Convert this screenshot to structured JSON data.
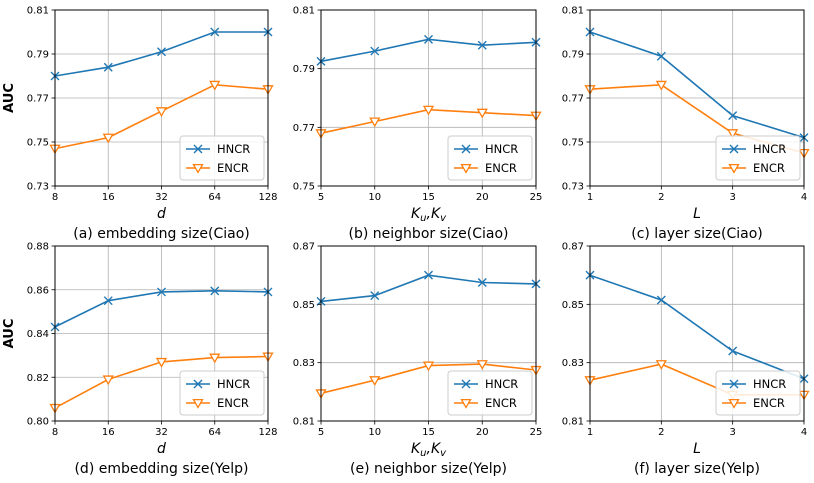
{
  "chart_data": [
    {
      "type": "line",
      "title": "(a) embedding size(Ciao)",
      "xlabel": "d",
      "ylabel": "AUC",
      "categories": [
        "8",
        "16",
        "32",
        "64",
        "128"
      ],
      "yticks": [
        "0.73",
        "0.75",
        "0.77",
        "0.79",
        "0.81"
      ],
      "ylim": [
        0.73,
        0.81
      ],
      "grid": true,
      "legend": "lower-right",
      "series": [
        {
          "name": "HNCR",
          "values": [
            0.78,
            0.784,
            0.791,
            0.8,
            0.8
          ]
        },
        {
          "name": "ENCR",
          "values": [
            0.747,
            0.752,
            0.764,
            0.776,
            0.774
          ]
        }
      ]
    },
    {
      "type": "line",
      "title": "(b) neighbor size(Ciao)",
      "xlabel": "Ku,Kv",
      "ylabel": "",
      "categories": [
        "5",
        "10",
        "15",
        "20",
        "25"
      ],
      "yticks": [
        "0.75",
        "0.77",
        "0.79",
        "0.81"
      ],
      "ylim": [
        0.75,
        0.81
      ],
      "grid": true,
      "legend": "lower-right",
      "series": [
        {
          "name": "HNCR",
          "values": [
            0.7925,
            0.796,
            0.8,
            0.798,
            0.799
          ]
        },
        {
          "name": "ENCR",
          "values": [
            0.768,
            0.772,
            0.776,
            0.775,
            0.774
          ]
        }
      ]
    },
    {
      "type": "line",
      "title": "(c) layer size(Ciao)",
      "xlabel": "L",
      "ylabel": "",
      "categories": [
        "1",
        "2",
        "3",
        "4"
      ],
      "yticks": [
        "0.73",
        "0.75",
        "0.77",
        "0.79",
        "0.81"
      ],
      "ylim": [
        0.73,
        0.81
      ],
      "grid": true,
      "legend": "lower-right",
      "series": [
        {
          "name": "HNCR",
          "values": [
            0.8,
            0.789,
            0.762,
            0.752
          ]
        },
        {
          "name": "ENCR",
          "values": [
            0.774,
            0.776,
            0.754,
            0.745
          ]
        }
      ]
    },
    {
      "type": "line",
      "title": "(d) embedding size(Yelp)",
      "xlabel": "d",
      "ylabel": "AUC",
      "categories": [
        "8",
        "16",
        "32",
        "64",
        "128"
      ],
      "yticks": [
        "0.80",
        "0.82",
        "0.84",
        "0.86",
        "0.88"
      ],
      "ylim": [
        0.8,
        0.88
      ],
      "grid": true,
      "legend": "lower-right",
      "series": [
        {
          "name": "HNCR",
          "values": [
            0.843,
            0.855,
            0.859,
            0.8595,
            0.859
          ]
        },
        {
          "name": "ENCR",
          "values": [
            0.806,
            0.819,
            0.827,
            0.829,
            0.8295
          ]
        }
      ]
    },
    {
      "type": "line",
      "title": "(e) neighbor size(Yelp)",
      "xlabel": "Ku,Kv",
      "ylabel": "",
      "categories": [
        "5",
        "10",
        "15",
        "20",
        "25"
      ],
      "yticks": [
        "0.81",
        "0.83",
        "0.85",
        "0.87"
      ],
      "ylim": [
        0.81,
        0.87
      ],
      "grid": true,
      "legend": "lower-right",
      "series": [
        {
          "name": "HNCR",
          "values": [
            0.851,
            0.853,
            0.86,
            0.8575,
            0.857
          ]
        },
        {
          "name": "ENCR",
          "values": [
            0.8195,
            0.824,
            0.829,
            0.8295,
            0.8275
          ]
        }
      ]
    },
    {
      "type": "line",
      "title": "(f) layer size(Yelp)",
      "xlabel": "L",
      "ylabel": "",
      "categories": [
        "1",
        "2",
        "3",
        "4"
      ],
      "yticks": [
        "0.81",
        "0.83",
        "0.85",
        "0.87"
      ],
      "ylim": [
        0.81,
        0.87
      ],
      "grid": true,
      "legend": "lower-right",
      "series": [
        {
          "name": "HNCR",
          "values": [
            0.86,
            0.8515,
            0.834,
            0.8245
          ]
        },
        {
          "name": "ENCR",
          "values": [
            0.824,
            0.8295,
            0.819,
            0.819
          ]
        }
      ]
    }
  ],
  "colors": {
    "HNCR": "#1f77b4",
    "ENCR": "#ff7f0e",
    "grid": "#b0b0b0",
    "axis": "#000000"
  }
}
